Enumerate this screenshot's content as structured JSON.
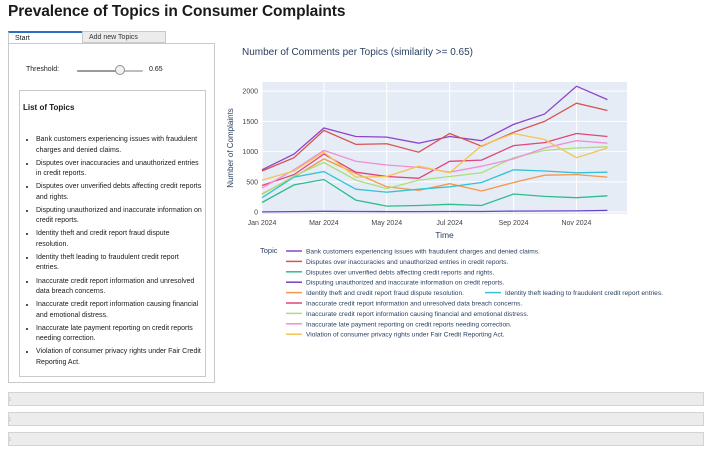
{
  "page": {
    "title": "Prevalence of Topics in Consumer Complaints"
  },
  "tabs": [
    {
      "label": "Start",
      "active": true
    },
    {
      "label": "Add new Topics",
      "active": false
    }
  ],
  "controls": {
    "threshold_label": "Threshold:",
    "threshold_value": "0.65",
    "threshold_fraction": 0.65
  },
  "topics_panel": {
    "heading": "List of Topics",
    "items": [
      "Bank customers experiencing issues with fraudulent charges and denied claims.",
      "Disputes over inaccuracies and unauthorized entries in credit reports.",
      "Disputes over unverified debts affecting credit reports and rights.",
      "Disputing unauthorized and inaccurate information on credit reports.",
      "Identity theft and credit report fraud dispute resolution.",
      "Identity theft leading to fraudulent credit report entries.",
      "Inaccurate credit report information and unresolved data breach concerns.",
      "Inaccurate credit report information causing financial and emotional distress.",
      "Inaccurate late payment reporting on credit reports needing correction.",
      "Violation of consumer privacy rights under Fair Credit Reporting Act."
    ]
  },
  "accordions": 3,
  "chart_data": {
    "type": "line",
    "title": "Number of Comments per Topics (similarity >= 0.65)",
    "xlabel": "Time",
    "ylabel": "Number of Complaints",
    "legend_title": "Topic",
    "legend_position": "bottom",
    "grid": true,
    "x": [
      "2024-01-01",
      "2024-02-01",
      "2024-03-01",
      "2024-04-01",
      "2024-05-01",
      "2024-06-01",
      "2024-07-01",
      "2024-08-01",
      "2024-09-01",
      "2024-10-01",
      "2024-11-01",
      "2024-12-01"
    ],
    "x_ticks": [
      "Jan 2024",
      "Mar 2024",
      "May 2024",
      "Jul 2024",
      "Sep 2024",
      "Nov 2024"
    ],
    "y_ticks": [
      "0",
      "500",
      "1000",
      "1500",
      "2000"
    ],
    "ylim": [
      -30,
      2150
    ],
    "series": [
      {
        "name": "Bank customers experiencing issues with fraudulent charges and denied claims.",
        "color": "#8e44c9",
        "values": [
          700,
          960,
          1390,
          1250,
          1240,
          1140,
          1250,
          1180,
          1450,
          1620,
          2080,
          1860
        ]
      },
      {
        "name": "Disputes over inaccuracies and unauthorized entries in credit reports.",
        "color": "#d9534f",
        "values": [
          680,
          900,
          1350,
          1120,
          1130,
          990,
          1300,
          1090,
          1320,
          1500,
          1800,
          1680
        ]
      },
      {
        "name": "Disputes over unverified debts affecting credit reports and rights.",
        "color": "#2ebc8c",
        "values": [
          160,
          450,
          540,
          200,
          100,
          110,
          130,
          110,
          300,
          260,
          240,
          270
        ]
      },
      {
        "name": "Disputing unauthorized and inaccurate information on credit reports.",
        "color": "#6a44c9",
        "values": [
          5,
          10,
          15,
          12,
          10,
          10,
          12,
          12,
          18,
          20,
          22,
          30
        ]
      },
      {
        "name": "Identity theft and credit report fraud dispute resolution.",
        "color": "#f5964b",
        "values": [
          300,
          580,
          880,
          640,
          420,
          360,
          470,
          350,
          490,
          610,
          620,
          580
        ]
      },
      {
        "name": "Identity theft leading to fraudulent credit report entries.",
        "color": "#35c2d6",
        "values": [
          240,
          580,
          670,
          380,
          330,
          380,
          420,
          490,
          700,
          680,
          650,
          660
        ]
      },
      {
        "name": "Inaccurate credit report information and unresolved data breach concerns.",
        "color": "#e0457b",
        "values": [
          440,
          620,
          960,
          660,
          590,
          560,
          840,
          860,
          1100,
          1150,
          1300,
          1250
        ]
      },
      {
        "name": "Inaccurate credit report information causing financial and emotional distress.",
        "color": "#a8e07a",
        "values": [
          290,
          600,
          820,
          530,
          390,
          530,
          590,
          650,
          900,
          1020,
          1060,
          1080
        ]
      },
      {
        "name": "Inaccurate late payment reporting on credit reports needing correction.",
        "color": "#f08fd6",
        "values": [
          400,
          700,
          1020,
          840,
          780,
          740,
          660,
          760,
          880,
          1060,
          1180,
          1140
        ]
      },
      {
        "name": "Violation of consumer privacy rights under Fair Credit Reporting Act.",
        "color": "#f5c451",
        "values": [
          530,
          680,
          990,
          580,
          590,
          760,
          650,
          1100,
          1300,
          1200,
          900,
          1060
        ]
      }
    ]
  }
}
